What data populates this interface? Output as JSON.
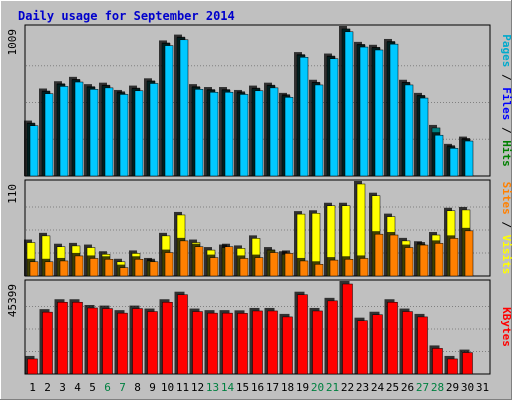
{
  "chart_data": {
    "type": "bar",
    "title": "Daily usage for September 2014",
    "categories": [
      "1",
      "2",
      "3",
      "4",
      "5",
      "6",
      "7",
      "8",
      "9",
      "10",
      "11",
      "12",
      "13",
      "14",
      "15",
      "16",
      "17",
      "18",
      "19",
      "20",
      "21",
      "22",
      "23",
      "24",
      "25",
      "26",
      "27",
      "28",
      "29",
      "30",
      "31"
    ],
    "weekend_days": [
      "6",
      "7",
      "13",
      "14",
      "20",
      "21",
      "27",
      "28"
    ],
    "panels": [
      {
        "name": "top",
        "max_label": "1009",
        "ylim": [
          0,
          1009
        ],
        "right_label": [
          {
            "text": "Pages",
            "color": "#00aacc"
          },
          {
            "text": " / ",
            "color": "#000000"
          },
          {
            "text": "Files",
            "color": "#0000ff"
          },
          {
            "text": " / ",
            "color": "#000000"
          },
          {
            "text": "Hits",
            "color": "#008000"
          }
        ],
        "series": [
          {
            "name": "Hits",
            "color": "#008080",
            "values": [
              360,
              580,
              630,
              660,
              610,
              620,
              570,
              600,
              650,
              910,
              950,
              610,
              590,
              590,
              570,
              600,
              620,
              550,
              830,
              640,
              820,
              1009,
              900,
              880,
              920,
              640,
              550,
              330,
              200,
              250,
              0
            ]
          },
          {
            "name": "Files",
            "color": "#00c8ff",
            "values": [
              345,
              565,
              615,
              645,
              595,
              605,
              560,
              585,
              635,
              895,
              935,
              595,
              575,
              575,
              560,
              585,
              605,
              540,
              815,
              625,
              805,
              990,
              885,
              865,
              905,
              625,
              535,
              280,
              190,
              240,
              0
            ]
          }
        ]
      },
      {
        "name": "middle",
        "max_label": "110",
        "ylim": [
          0,
          110
        ],
        "right_label": [
          {
            "text": "Sites",
            "color": "#ff8000"
          },
          {
            "text": " / ",
            "color": "#000000"
          },
          {
            "text": "Visits",
            "color": "#ffff00"
          }
        ],
        "series": [
          {
            "name": "Visits",
            "color": "#ffff00",
            "values": [
              40,
              48,
              35,
              36,
              34,
              26,
              17,
              27,
              18,
              48,
              73,
              40,
              31,
              34,
              33,
              45,
              31,
              26,
              74,
              75,
              84,
              84,
              110,
              96,
              71,
              42,
              38,
              49,
              78,
              79,
              0
            ]
          },
          {
            "name": "Sites",
            "color": "#ff8000",
            "values": [
              17,
              17,
              18,
              24,
              21,
              20,
              10,
              20,
              17,
              28,
              42,
              35,
              22,
              35,
              21,
              22,
              28,
              27,
              18,
              14,
              19,
              20,
              21,
              50,
              49,
              34,
              37,
              39,
              45,
              54,
              0
            ]
          }
        ]
      },
      {
        "name": "bottom",
        "max_label": "45399",
        "ylim": [
          0,
          45399
        ],
        "right_label": [
          {
            "text": "KBytes",
            "color": "#ff0000"
          }
        ],
        "series": [
          {
            "name": "KBytes",
            "color": "#ff0000",
            "values": [
              7600,
              31200,
              36200,
              36200,
              33300,
              33000,
              30700,
              33000,
              31500,
              36200,
              40000,
              31500,
              30700,
              30700,
              30600,
              31800,
              31800,
              28800,
              40000,
              31800,
              36900,
              45399,
              26900,
              29900,
              36200,
              31500,
              28800,
              12900,
              7600,
              10800,
              0
            ]
          }
        ]
      }
    ]
  }
}
